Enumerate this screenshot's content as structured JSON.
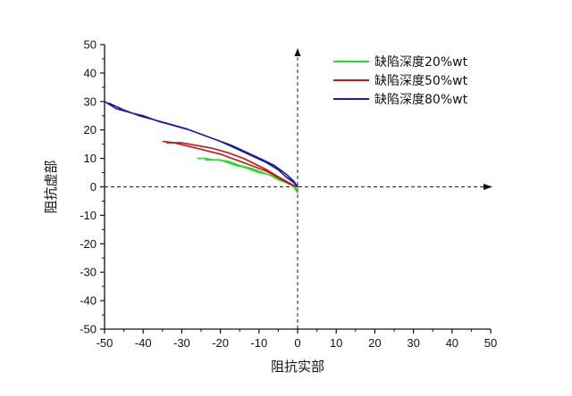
{
  "chart_data": {
    "type": "line",
    "xlabel": "阻抗实部",
    "ylabel": "阻抗虚部",
    "xlim": [
      -50,
      50
    ],
    "ylim": [
      -50,
      50
    ],
    "x_ticks": [
      -50,
      -40,
      -30,
      -20,
      -10,
      0,
      10,
      20,
      30,
      40,
      50
    ],
    "y_ticks": [
      -50,
      -40,
      -30,
      -20,
      -10,
      0,
      10,
      20,
      30,
      40,
      50
    ],
    "grid": false,
    "legend_position": "top-right",
    "series": [
      {
        "name": "缺陷深度20%wt",
        "color": "#22dd22",
        "points": [
          [
            -26,
            10
          ],
          [
            -24,
            10
          ],
          [
            -22,
            9.5
          ],
          [
            -20,
            9.5
          ],
          [
            -18,
            8.5
          ],
          [
            -16,
            7.5
          ],
          [
            -14,
            7
          ],
          [
            -12,
            6
          ],
          [
            -10,
            5
          ],
          [
            -8,
            4.5
          ],
          [
            -6,
            3.5
          ],
          [
            -4,
            2.5
          ],
          [
            -2,
            1
          ],
          [
            -1,
            0
          ],
          [
            -0.5,
            -1
          ],
          [
            0,
            -2
          ],
          [
            -0.5,
            -0.5
          ],
          [
            -1.5,
            0.5
          ],
          [
            -3,
            1.5
          ],
          [
            -5,
            2.5
          ],
          [
            -7,
            4
          ],
          [
            -9,
            5
          ],
          [
            -12,
            6.5
          ],
          [
            -15,
            7.5
          ],
          [
            -18,
            9
          ],
          [
            -21,
            9.5
          ],
          [
            -24,
            9.5
          ]
        ]
      },
      {
        "name": "缺陷深度50%wt",
        "color": "#cc1111",
        "points": [
          [
            -35,
            16
          ],
          [
            -32,
            15.5
          ],
          [
            -29,
            14.5
          ],
          [
            -26,
            13.5
          ],
          [
            -23,
            12.5
          ],
          [
            -20,
            11.5
          ],
          [
            -17,
            10
          ],
          [
            -14,
            8.5
          ],
          [
            -11,
            7
          ],
          [
            -8,
            5.5
          ],
          [
            -6,
            4
          ],
          [
            -4,
            2.5
          ],
          [
            -2,
            1
          ],
          [
            0,
            0
          ],
          [
            -1,
            0.5
          ],
          [
            -3,
            2
          ],
          [
            -5,
            3.5
          ],
          [
            -8,
            6
          ],
          [
            -11,
            8
          ],
          [
            -14,
            10
          ],
          [
            -18,
            12
          ],
          [
            -22,
            13.5
          ],
          [
            -26,
            14.5
          ],
          [
            -30,
            15.5
          ],
          [
            -34,
            15.5
          ]
        ]
      },
      {
        "name": "缺陷深度80%wt",
        "color": "#1a1aa6",
        "points": [
          [
            -50,
            30
          ],
          [
            -47,
            27.5
          ],
          [
            -43,
            26
          ],
          [
            -40,
            25
          ],
          [
            -36,
            23
          ],
          [
            -32,
            21.5
          ],
          [
            -28,
            20
          ],
          [
            -24,
            18
          ],
          [
            -20,
            16
          ],
          [
            -16,
            13.5
          ],
          [
            -12,
            11
          ],
          [
            -8,
            8.5
          ],
          [
            -5,
            6
          ],
          [
            -3,
            3.5
          ],
          [
            -1,
            1.5
          ],
          [
            0,
            0
          ],
          [
            -1,
            2
          ],
          [
            -3,
            4.5
          ],
          [
            -6,
            7.5
          ],
          [
            -9,
            9.5
          ],
          [
            -13,
            12
          ],
          [
            -17,
            14.5
          ],
          [
            -21,
            16.5
          ],
          [
            -25,
            18.5
          ],
          [
            -29,
            20.5
          ],
          [
            -33,
            22
          ],
          [
            -37,
            23.5
          ],
          [
            -41,
            25
          ],
          [
            -45,
            27
          ],
          [
            -49,
            29.5
          ]
        ]
      }
    ]
  }
}
